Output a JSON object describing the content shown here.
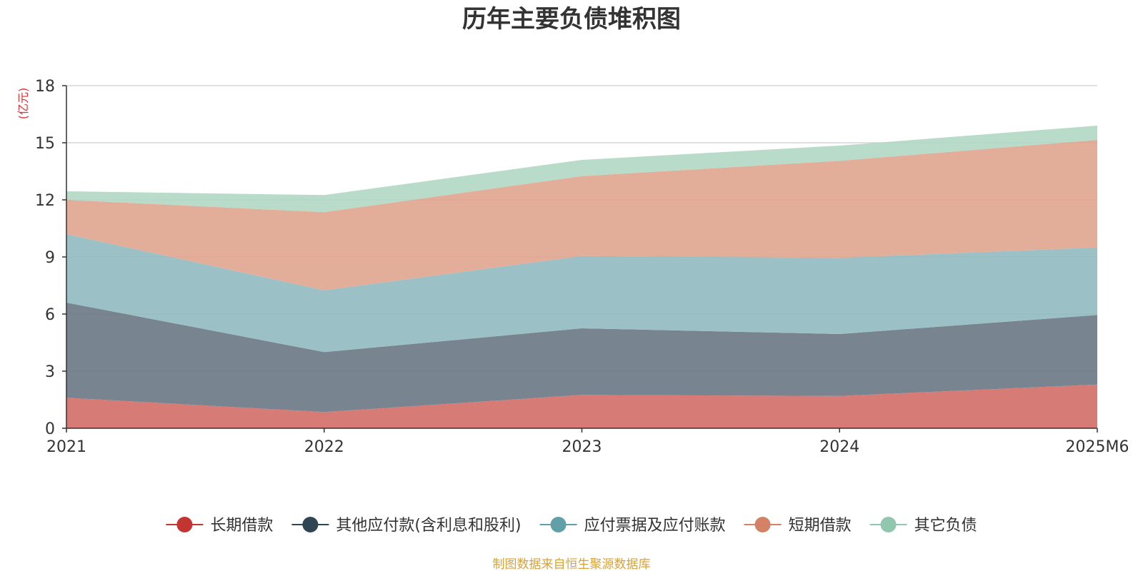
{
  "chart_data": {
    "type": "area",
    "stacked": true,
    "title": "历年主要负债堆积图",
    "unit_label": "(亿元)",
    "x": [
      "2021",
      "2022",
      "2023",
      "2024",
      "2025M6"
    ],
    "ylim": [
      0,
      18
    ],
    "yticks": [
      0,
      3,
      6,
      9,
      12,
      15,
      18
    ],
    "grid": true,
    "legend_position": "bottom",
    "series": [
      {
        "name": "长期借款",
        "color": "#c23531",
        "fill": "#d4706b",
        "values": [
          1.6,
          0.85,
          1.75,
          1.7,
          2.3
        ]
      },
      {
        "name": "其他应付款(含利息和股利)",
        "color": "#2f4554",
        "fill": "#6d7b87",
        "values": [
          5.0,
          3.15,
          3.5,
          3.25,
          3.65
        ]
      },
      {
        "name": "应付票据及应付账款",
        "color": "#61a0a8",
        "fill": "#93bbc1",
        "values": [
          3.6,
          3.25,
          3.8,
          4.0,
          3.55
        ]
      },
      {
        "name": "短期借款",
        "color": "#d48265",
        "fill": "#dfa690",
        "values": [
          1.8,
          4.1,
          4.2,
          5.1,
          5.65
        ]
      },
      {
        "name": "其它负债",
        "color": "#91c7ae",
        "fill": "#b3d8c6",
        "values": [
          0.45,
          0.9,
          0.85,
          0.8,
          0.75
        ]
      }
    ],
    "source": "制图数据来自恒生聚源数据库"
  },
  "colors": {
    "axis": "#333333",
    "grid": "#cccccc",
    "unit": "#e03030",
    "source": "#d9a23a"
  }
}
